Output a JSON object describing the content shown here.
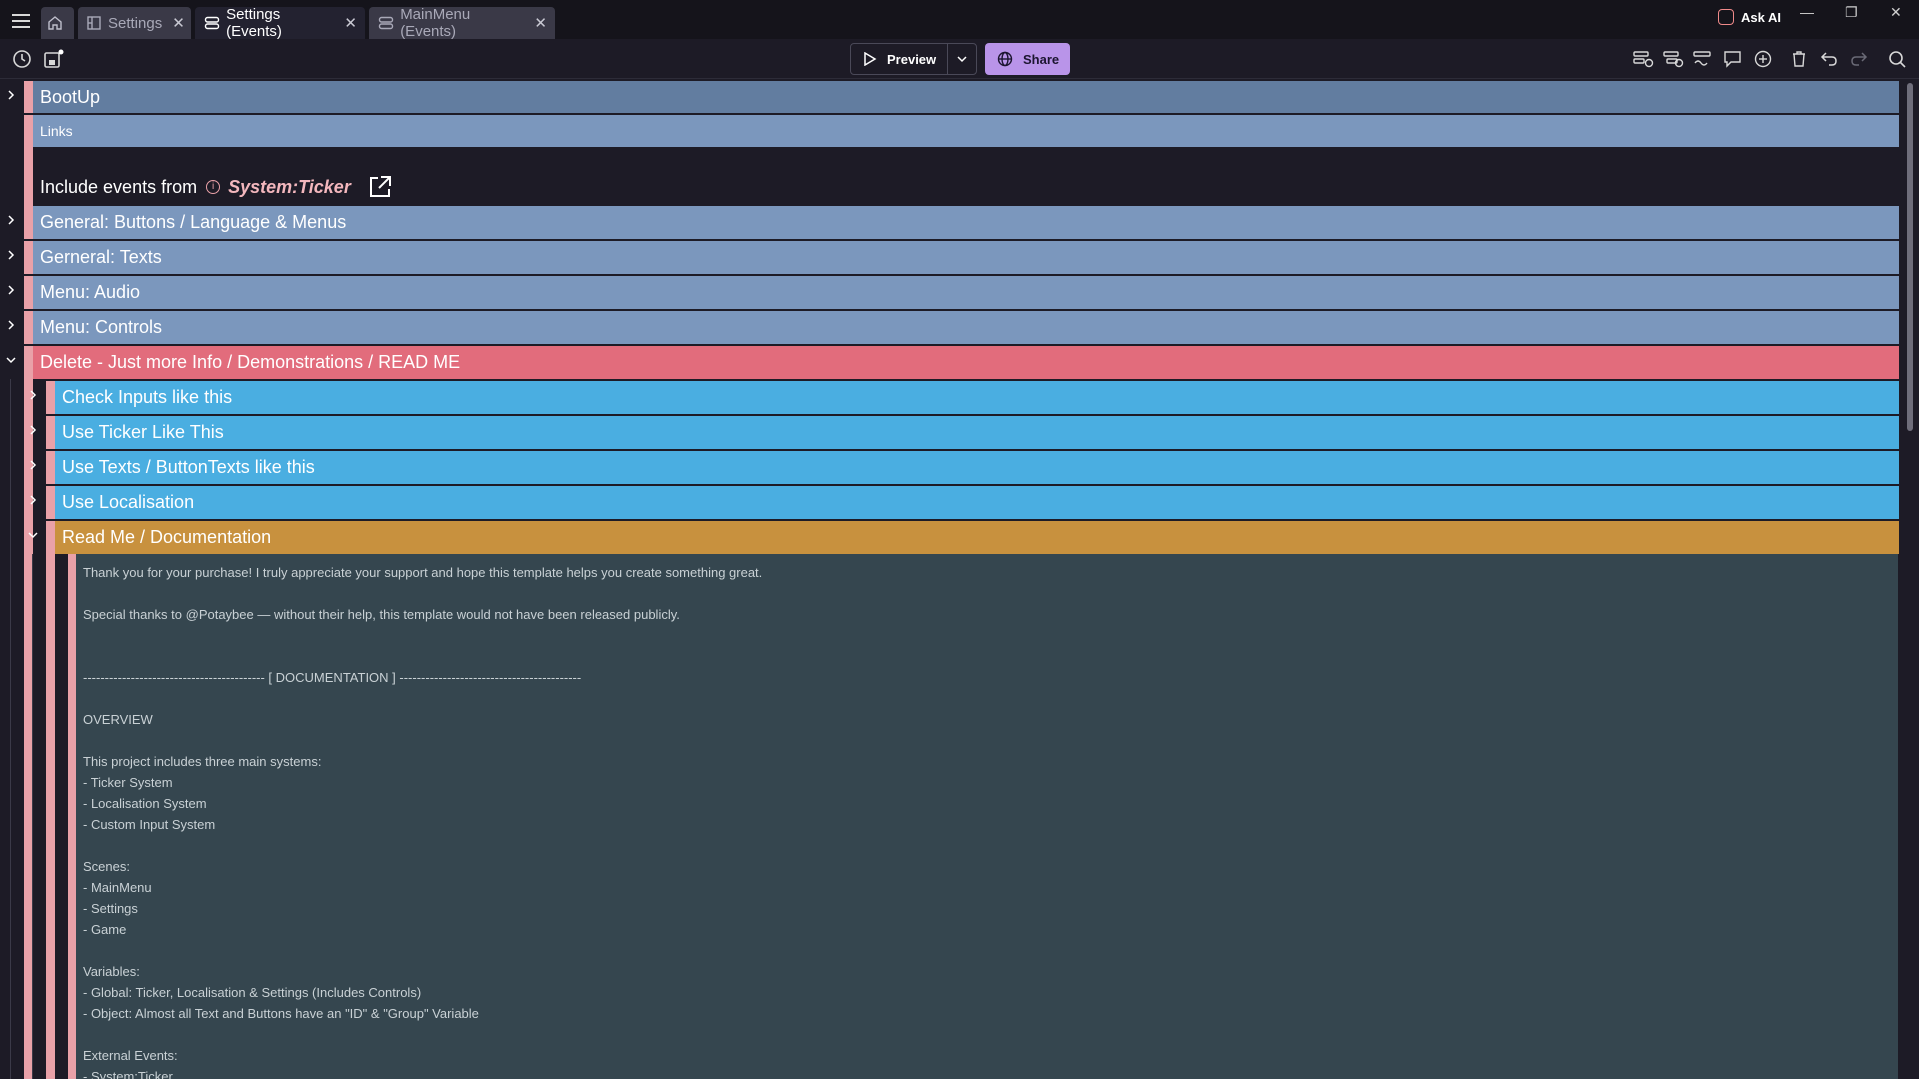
{
  "tabs": [
    {
      "label": "Settings"
    },
    {
      "label": "Settings (Events)"
    },
    {
      "label": "MainMenu (Events)"
    }
  ],
  "header": {
    "ask_ai": "Ask AI"
  },
  "toolbar": {
    "preview": "Preview",
    "share": "Share"
  },
  "events": {
    "bootup": "BootUp",
    "links": "Links",
    "include_prefix": "Include events from",
    "include_target": "System:Ticker",
    "groups": [
      "General: Buttons / Language & Menus",
      "Gerneral: Texts",
      "Menu: Audio",
      "Menu: Controls"
    ],
    "delete_group": "Delete - Just more Info / Demonstrations / READ ME",
    "sub_groups": [
      "Check Inputs like this",
      "Use Ticker Like This",
      "Use Texts / ButtonTexts like this",
      "Use Localisation"
    ],
    "readme_group": "Read Me / Documentation"
  },
  "comment_lines": [
    "Thank you for your purchase! I truly appreciate your support and hope this template helps you create something great.",
    "",
    "Special thanks to @Potaybee — without their help, this template would not have been released publicly.",
    "",
    "",
    "------------------------------------------ [ DOCUMENTATION ] ------------------------------------------",
    "",
    "OVERVIEW",
    "",
    "This project includes three main systems:",
    "- Ticker System",
    "- Localisation System",
    "- Custom Input System",
    "",
    "Scenes:",
    "- MainMenu",
    "- Settings",
    "- Game",
    "",
    "Variables:",
    "- Global: Ticker, Localisation & Settings (Includes Controls)",
    "- Object: Almost all Text and Buttons have an \"ID\" & \"Group\" Variable",
    "",
    "External Events:",
    "- System:Ticker"
  ],
  "colors": {
    "group_blue": "#7b97bd",
    "group_dark_blue": "#627da0",
    "delete_red": "#e26c7c",
    "sub_blue": "#4aaee1",
    "readme_orange": "#c8913e",
    "accent_pink": "#e9a1a8",
    "comment_bg": "#35464f"
  }
}
